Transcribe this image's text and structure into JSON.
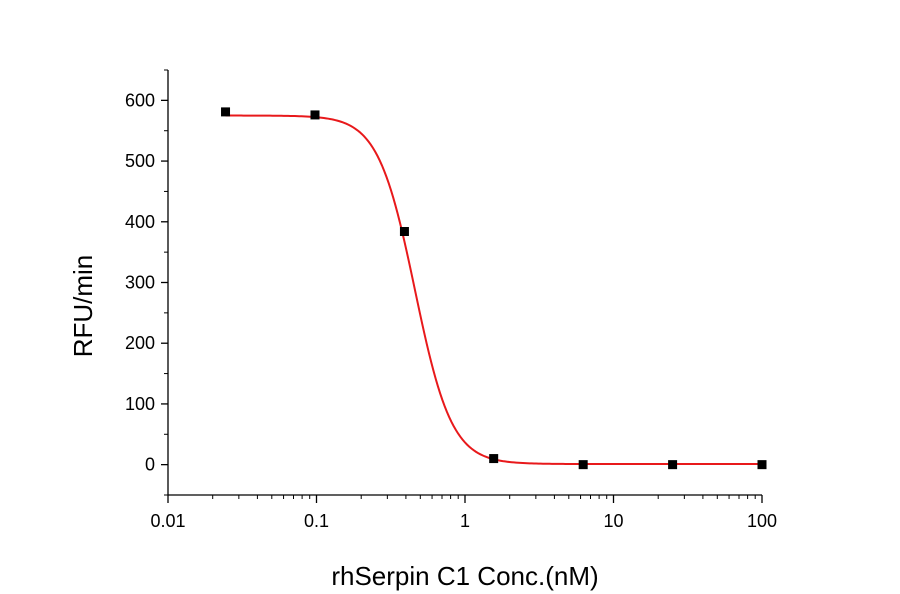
{
  "chart_data": {
    "type": "scatter",
    "title": "",
    "xlabel": "rhSerpin C1 Conc.(nM)",
    "ylabel": "RFU/min",
    "xscale": "log",
    "xlim": [
      0.01,
      100
    ],
    "ylim": [
      -50,
      650
    ],
    "x_ticks": [
      0.01,
      0.1,
      1,
      10,
      100
    ],
    "x_tick_labels": [
      "0.01",
      "0.1",
      "1",
      "10",
      "100"
    ],
    "y_ticks": [
      0,
      100,
      200,
      300,
      400,
      500,
      600
    ],
    "y_tick_labels": [
      "0",
      "100",
      "200",
      "300",
      "400",
      "500",
      "600"
    ],
    "grid": false,
    "legend": "none",
    "series": [
      {
        "points": [
          {
            "x": 0.0244,
            "y": 581
          },
          {
            "x": 0.0977,
            "y": 576
          },
          {
            "x": 0.391,
            "y": 384
          },
          {
            "x": 1.56,
            "y": 10
          },
          {
            "x": 6.25,
            "y": 0
          },
          {
            "x": 25,
            "y": 0
          },
          {
            "x": 100,
            "y": 0
          }
        ],
        "marker": "square",
        "color": "#000000"
      }
    ],
    "fit_curve": {
      "model": "4PL",
      "top": 575,
      "bottom": 1,
      "ic50": 0.46,
      "hill": 3.5,
      "color": "#e8191b"
    }
  }
}
